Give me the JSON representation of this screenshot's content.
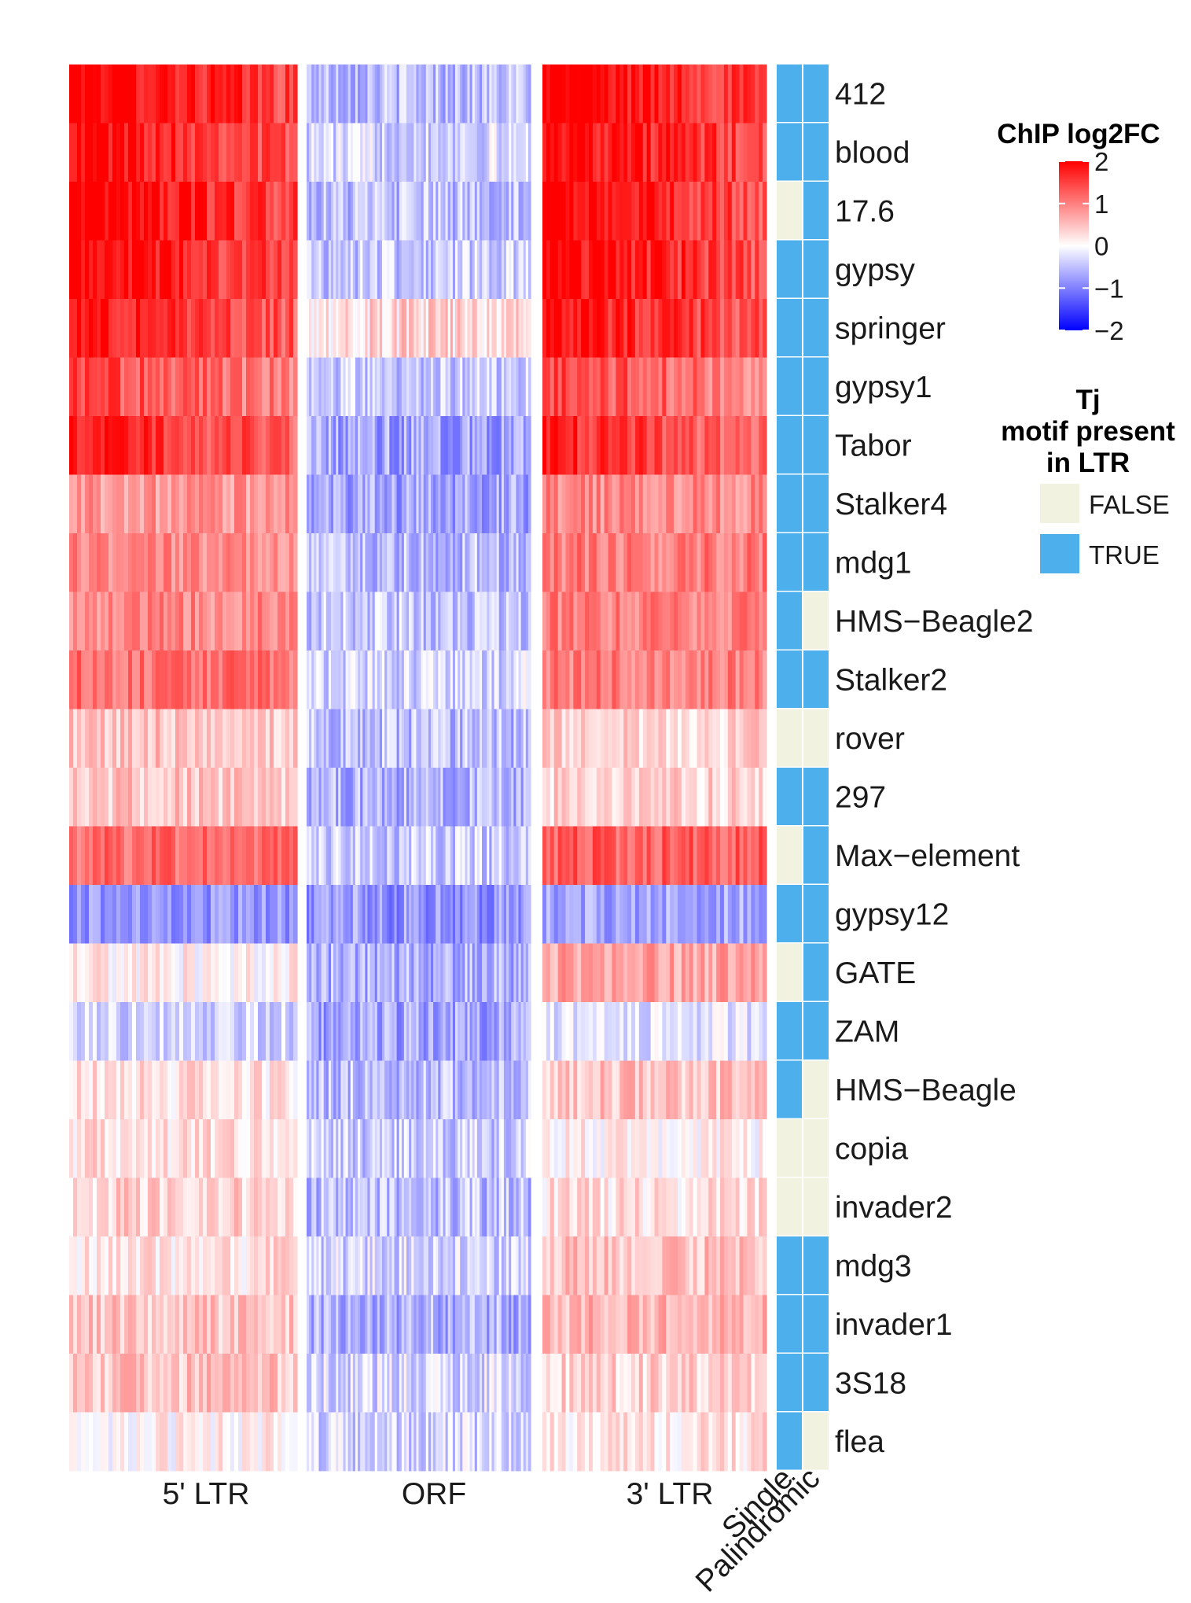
{
  "chart_data": {
    "type": "heatmap",
    "rows": [
      "412",
      "blood",
      "17.6",
      "gypsy",
      "springer",
      "gypsy1",
      "Tabor",
      "Stalker4",
      "mdg1",
      "HMS−Beagle2",
      "Stalker2",
      "rover",
      "297",
      "Max−element",
      "gypsy12",
      "GATE",
      "ZAM",
      "HMS−Beagle",
      "copia",
      "invader2",
      "mdg3",
      "invader1",
      "3S18",
      "flea"
    ],
    "panels": [
      "5' LTR",
      "ORF",
      "3' LTR"
    ],
    "panel_mean_log2fc": [
      [
        1.9,
        -0.5,
        1.9
      ],
      [
        1.8,
        -0.3,
        1.8
      ],
      [
        1.9,
        -0.5,
        1.8
      ],
      [
        1.8,
        -0.4,
        1.8
      ],
      [
        1.7,
        0.3,
        1.7
      ],
      [
        1.3,
        -0.4,
        1.3
      ],
      [
        1.6,
        -0.7,
        1.5
      ],
      [
        0.7,
        -0.7,
        0.8
      ],
      [
        0.8,
        -0.5,
        0.9
      ],
      [
        0.8,
        -0.4,
        0.9
      ],
      [
        1.0,
        -0.3,
        0.9
      ],
      [
        0.4,
        -0.5,
        0.3
      ],
      [
        0.4,
        -0.6,
        0.3
      ],
      [
        1.0,
        -0.4,
        1.1
      ],
      [
        -0.7,
        -0.8,
        -0.6
      ],
      [
        0.1,
        -0.6,
        0.6
      ],
      [
        -0.3,
        -0.7,
        -0.2
      ],
      [
        0.2,
        -0.5,
        0.4
      ],
      [
        0.2,
        -0.4,
        0.1
      ],
      [
        0.3,
        -0.5,
        0.2
      ],
      [
        0.2,
        -0.3,
        0.4
      ],
      [
        0.4,
        -0.6,
        0.5
      ],
      [
        0.4,
        -0.3,
        0.3
      ],
      [
        0.1,
        -0.3,
        0.2
      ]
    ],
    "annotation_columns": [
      "Single",
      "Palindromic"
    ],
    "annotations": {
      "Single": [
        true,
        true,
        false,
        true,
        true,
        true,
        true,
        true,
        true,
        true,
        true,
        false,
        true,
        false,
        true,
        false,
        true,
        true,
        false,
        false,
        true,
        true,
        true,
        true
      ],
      "Palindromic": [
        true,
        true,
        true,
        true,
        true,
        true,
        true,
        true,
        true,
        false,
        true,
        false,
        true,
        true,
        true,
        true,
        true,
        false,
        false,
        false,
        true,
        true,
        true,
        false
      ]
    },
    "color_scale": {
      "title": "ChIP log2FC",
      "range": [
        -2,
        2
      ],
      "ticks": [
        "2",
        "1",
        "0",
        "−1",
        "−2"
      ],
      "tick_values": [
        2,
        1,
        0,
        -1,
        -2
      ],
      "colors": {
        "low": "#0000ff",
        "mid": "#ffffff",
        "high": "#ff0000"
      }
    },
    "annotation_legend": {
      "title": [
        "Tj",
        "motif present",
        "in LTR"
      ],
      "entries": [
        {
          "label": "FALSE",
          "color": "#f2f2e1"
        },
        {
          "label": "TRUE",
          "color": "#4db0ec"
        }
      ]
    }
  }
}
